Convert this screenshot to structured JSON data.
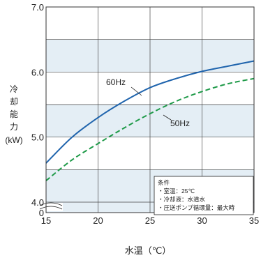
{
  "chart_data": {
    "type": "line",
    "xlabel": "水温（℃）",
    "ylabel_chars": [
      "冷",
      "却",
      "能",
      "力"
    ],
    "ylabel_unit": "(kW)",
    "xlim": [
      15,
      35
    ],
    "ylim": [
      4.0,
      7.0
    ],
    "x_ticks": [
      "15",
      "20",
      "25",
      "30",
      "35"
    ],
    "y_ticks": [
      "4.0",
      "5.0",
      "6.0",
      "7.0"
    ],
    "y_zero_label": "0",
    "grid": true,
    "series": [
      {
        "name": "60Hz",
        "style": "solid",
        "color": "#1f64ad",
        "x": [
          15,
          17.5,
          20,
          22.5,
          25,
          27.5,
          30,
          32.5,
          35
        ],
        "y": [
          4.6,
          5.0,
          5.3,
          5.55,
          5.76,
          5.9,
          6.01,
          6.09,
          6.17
        ]
      },
      {
        "name": "50Hz",
        "style": "dashed",
        "color": "#1e9a48",
        "x": [
          15,
          17.5,
          20,
          22.5,
          25,
          27.5,
          30,
          32.5,
          35
        ],
        "y": [
          4.33,
          4.65,
          4.9,
          5.14,
          5.36,
          5.55,
          5.7,
          5.82,
          5.9
        ]
      }
    ],
    "conditions": {
      "title": "条件",
      "items": [
        "・室温：25℃",
        "・冷却液：水道水",
        "・圧送ポンプ循環量：最大時"
      ]
    }
  },
  "colors": {
    "band": "#e4eef5",
    "grid": "#444444",
    "frame": "#333333"
  }
}
